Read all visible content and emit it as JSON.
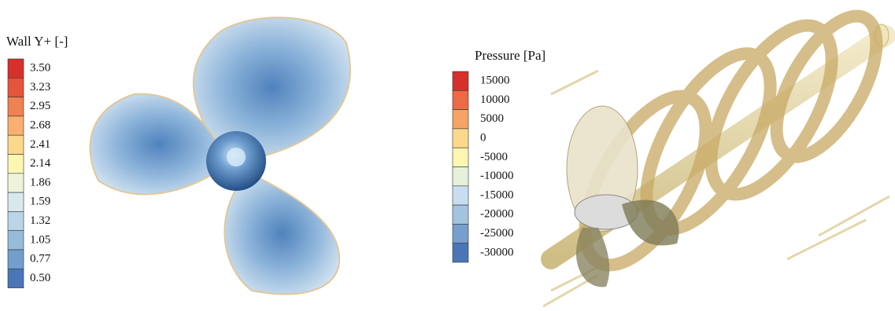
{
  "panels": [
    {
      "legend_title": "Wall Y+ [-]",
      "ticks": [
        "3.50",
        "3.23",
        "2.95",
        "2.68",
        "2.41",
        "2.14",
        "1.86",
        "1.59",
        "1.32",
        "1.05",
        "0.77",
        "0.50"
      ],
      "colors": [
        "#d7302a",
        "#e4553b",
        "#f08150",
        "#f8b070",
        "#fcd98a",
        "#fdf6b2",
        "#edf4d9",
        "#d9e8ef",
        "#bad5e6",
        "#97bcdb",
        "#719ecb",
        "#4a76b7"
      ]
    },
    {
      "legend_title": "Pressure  [Pa]",
      "ticks": [
        "15000",
        "10000",
        "5000",
        "0",
        "-5000",
        "-10000",
        "-15000",
        "-20000",
        "-25000",
        "-30000"
      ],
      "colors": [
        "#d7302a",
        "#ec6a45",
        "#f6a466",
        "#fcd98a",
        "#fdf6b2",
        "#e6f1dc",
        "#c8def0",
        "#a3c4e0",
        "#769fcd",
        "#4a76b7"
      ]
    }
  ]
}
